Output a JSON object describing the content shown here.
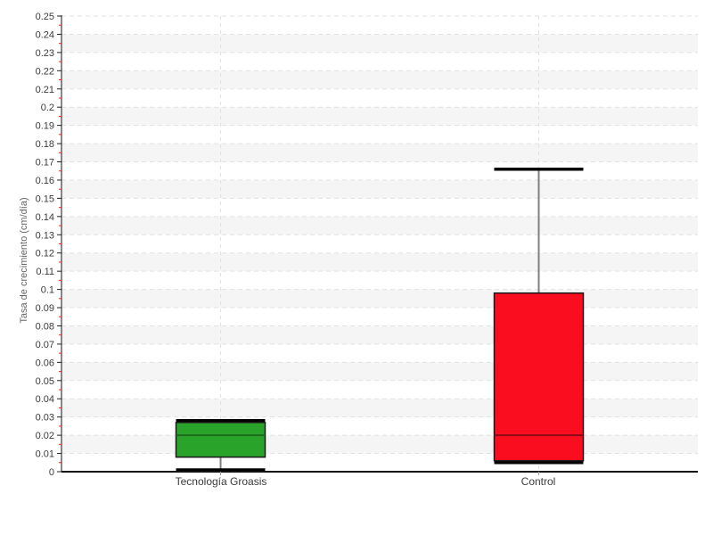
{
  "chart_data": {
    "type": "boxplot",
    "title": "",
    "xlabel": "",
    "ylabel": "Tasa de crecimiento (cm/día)",
    "ylim": [
      0,
      0.25
    ],
    "ytick_step": 0.01,
    "minor_tick_step": 0.005,
    "grid": "horizontal dashed gridlines at every 0.01, dashed vertical line at each category center, alternating 0.01-high background bands",
    "legend_position": "none",
    "categories": [
      "Tecnología Groasis",
      "Control"
    ],
    "series": [
      {
        "name": "Tecnología Groasis",
        "min": 0.001,
        "q1": 0.008,
        "median": 0.02,
        "q3": 0.027,
        "max": 0.028,
        "fill": "#2aa32a",
        "median_color": "#1d6b1d"
      },
      {
        "name": "Control",
        "min": 0.005,
        "q1": 0.006,
        "median": 0.02,
        "q3": 0.098,
        "max": 0.166,
        "fill": "#f90d1f",
        "median_color": "#8a0a14"
      }
    ],
    "colors": {
      "band": "#f5f5f5",
      "gridline": "#e2e2e2",
      "axis": "#111111",
      "major_tick": "#222222",
      "minor_tick": "#ff2000",
      "tick_label": "#3b3b3b",
      "whisker_stem": "#7f7f7f",
      "whisker_cap": "#000000",
      "box_border": "#1a1a1a"
    }
  }
}
